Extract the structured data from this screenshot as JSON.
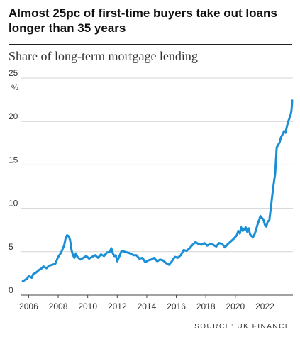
{
  "chart_data": {
    "type": "line",
    "title": "Almost 25pc of first-time buyers take out loans longer than 35 years",
    "subtitle": "Share of long-term mortgage lending",
    "unit_label": "%",
    "source": "SOURCE: UK FINANCE",
    "ylim": [
      0,
      25
    ],
    "xlim": [
      2005.5,
      2023.9
    ],
    "y_ticks": [
      0,
      5,
      10,
      15,
      20,
      25
    ],
    "x_ticks": [
      2006,
      2008,
      2010,
      2012,
      2014,
      2016,
      2018,
      2020,
      2022
    ],
    "grid": true,
    "color": "#1a8fd6",
    "series": [
      {
        "name": "",
        "x": [
          2005.6,
          2005.9,
          2006.0,
          2006.2,
          2006.3,
          2006.5,
          2006.7,
          2006.9,
          2007.0,
          2007.2,
          2007.4,
          2007.6,
          2007.8,
          2008.0,
          2008.2,
          2008.4,
          2008.5,
          2008.6,
          2008.7,
          2008.8,
          2008.9,
          2009.0,
          2009.1,
          2009.2,
          2009.3,
          2009.5,
          2009.7,
          2009.9,
          2010.1,
          2010.3,
          2010.5,
          2010.7,
          2010.9,
          2011.1,
          2011.3,
          2011.5,
          2011.6,
          2011.7,
          2011.8,
          2011.9,
          2012.0,
          2012.1,
          2012.3,
          2012.5,
          2012.7,
          2012.9,
          2013.1,
          2013.3,
          2013.5,
          2013.7,
          2013.9,
          2014.1,
          2014.3,
          2014.5,
          2014.7,
          2014.9,
          2015.1,
          2015.3,
          2015.5,
          2015.7,
          2015.9,
          2016.1,
          2016.3,
          2016.5,
          2016.7,
          2016.9,
          2017.1,
          2017.3,
          2017.5,
          2017.7,
          2017.9,
          2018.1,
          2018.3,
          2018.5,
          2018.7,
          2018.9,
          2019.1,
          2019.3,
          2019.5,
          2019.7,
          2019.9,
          2020.1,
          2020.2,
          2020.3,
          2020.4,
          2020.5,
          2020.6,
          2020.7,
          2020.8,
          2020.9,
          2021.0,
          2021.1,
          2021.2,
          2021.3,
          2021.4,
          2021.5,
          2021.6,
          2021.7,
          2021.8,
          2021.9,
          2022.0,
          2022.1,
          2022.2,
          2022.3,
          2022.4,
          2022.5,
          2022.6,
          2022.7,
          2022.8,
          2022.9,
          2023.0,
          2023.1,
          2023.2,
          2023.3,
          2023.4,
          2023.5,
          2023.6,
          2023.7,
          2023.8,
          2023.85
        ],
        "values": [
          1.6,
          1.9,
          2.2,
          2.0,
          2.4,
          2.6,
          2.9,
          3.1,
          3.3,
          3.1,
          3.4,
          3.5,
          3.6,
          4.4,
          4.9,
          5.7,
          6.5,
          6.9,
          6.8,
          6.4,
          5.2,
          4.6,
          4.3,
          4.8,
          4.4,
          4.1,
          4.3,
          4.5,
          4.2,
          4.4,
          4.6,
          4.3,
          4.7,
          4.5,
          4.9,
          5.0,
          5.4,
          4.8,
          4.5,
          4.6,
          3.9,
          4.3,
          5.1,
          5.0,
          4.9,
          4.8,
          4.6,
          4.6,
          4.2,
          4.3,
          3.8,
          4.0,
          4.1,
          4.3,
          3.9,
          4.1,
          4.0,
          3.7,
          3.5,
          3.9,
          4.4,
          4.3,
          4.6,
          5.2,
          5.1,
          5.4,
          5.8,
          6.1,
          5.9,
          5.8,
          6.0,
          5.7,
          5.9,
          5.8,
          5.6,
          6.0,
          5.9,
          5.5,
          5.9,
          6.2,
          6.5,
          6.9,
          7.4,
          7.1,
          7.8,
          7.4,
          7.6,
          7.8,
          7.3,
          7.7,
          7.0,
          6.8,
          6.7,
          7.0,
          7.5,
          8.1,
          8.6,
          9.1,
          8.9,
          8.7,
          8.1,
          7.9,
          8.5,
          8.6,
          10.0,
          11.5,
          12.8,
          14.0,
          17.0,
          17.3,
          17.6,
          18.2,
          18.5,
          18.9,
          18.7,
          19.5,
          20.1,
          20.5,
          21.2,
          22.4
        ]
      }
    ]
  }
}
